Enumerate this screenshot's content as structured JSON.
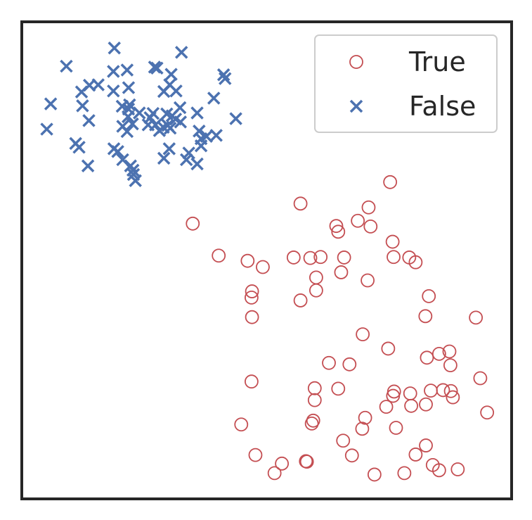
{
  "chart_data": {
    "type": "scatter",
    "title": "",
    "xlabel": "",
    "ylabel": "",
    "xlim": [
      0,
      100
    ],
    "ylim": [
      0,
      100
    ],
    "grid": false,
    "legend_position": "top-right",
    "series": [
      {
        "name": "True",
        "marker": "circle-open",
        "color": "#c44e52",
        "points": [
          [
            75.2,
            66.4
          ],
          [
            56.9,
            61.9
          ],
          [
            70.8,
            61.1
          ],
          [
            34.9,
            57.7
          ],
          [
            68.6,
            58.3
          ],
          [
            71.2,
            57.1
          ],
          [
            64.2,
            57.2
          ],
          [
            64.6,
            56.0
          ],
          [
            75.7,
            53.9
          ],
          [
            40.2,
            51.0
          ],
          [
            46.1,
            49.9
          ],
          [
            55.5,
            50.6
          ],
          [
            58.9,
            50.5
          ],
          [
            61.0,
            50.7
          ],
          [
            65.8,
            50.6
          ],
          [
            75.9,
            50.7
          ],
          [
            79.1,
            50.6
          ],
          [
            80.4,
            49.6
          ],
          [
            65.2,
            47.5
          ],
          [
            70.6,
            45.8
          ],
          [
            60.1,
            46.4
          ],
          [
            49.2,
            48.6
          ],
          [
            47.0,
            43.5
          ],
          [
            60.1,
            43.7
          ],
          [
            83.1,
            42.5
          ],
          [
            46.9,
            42.2
          ],
          [
            56.9,
            41.6
          ],
          [
            82.4,
            38.3
          ],
          [
            47.0,
            38.1
          ],
          [
            92.7,
            38.0
          ],
          [
            69.6,
            34.5
          ],
          [
            74.8,
            31.5
          ],
          [
            82.7,
            29.6
          ],
          [
            85.2,
            30.4
          ],
          [
            87.3,
            30.9
          ],
          [
            87.5,
            28.0
          ],
          [
            62.7,
            28.5
          ],
          [
            66.9,
            28.2
          ],
          [
            46.9,
            24.6
          ],
          [
            59.8,
            23.2
          ],
          [
            64.6,
            23.1
          ],
          [
            79.3,
            22.1
          ],
          [
            76.0,
            22.5
          ],
          [
            83.5,
            22.7
          ],
          [
            86.0,
            22.8
          ],
          [
            87.6,
            22.6
          ],
          [
            88.0,
            21.3
          ],
          [
            93.6,
            25.3
          ],
          [
            59.8,
            20.7
          ],
          [
            75.8,
            21.6
          ],
          [
            79.5,
            19.5
          ],
          [
            82.5,
            19.8
          ],
          [
            74.4,
            19.3
          ],
          [
            95.0,
            18.1
          ],
          [
            70.1,
            17.0
          ],
          [
            59.5,
            16.4
          ],
          [
            59.2,
            15.8
          ],
          [
            44.8,
            15.6
          ],
          [
            76.4,
            14.9
          ],
          [
            69.5,
            14.7
          ],
          [
            65.6,
            12.2
          ],
          [
            82.5,
            11.2
          ],
          [
            80.4,
            9.3
          ],
          [
            67.4,
            9.1
          ],
          [
            47.7,
            9.2
          ],
          [
            53.1,
            7.4
          ],
          [
            58.0,
            7.9
          ],
          [
            58.2,
            7.8
          ],
          [
            83.9,
            7.1
          ],
          [
            85.2,
            6.0
          ],
          [
            89.0,
            6.2
          ],
          [
            51.6,
            5.4
          ],
          [
            78.1,
            5.4
          ],
          [
            72.0,
            5.1
          ]
        ]
      },
      {
        "name": "False",
        "marker": "x",
        "color": "#4c72b0",
        "points": [
          [
            18.9,
            94.5
          ],
          [
            32.6,
            93.6
          ],
          [
            9.1,
            90.7
          ],
          [
            27.1,
            90.5
          ],
          [
            27.6,
            90.3
          ],
          [
            18.7,
            89.6
          ],
          [
            21.5,
            89.9
          ],
          [
            41.2,
            88.9
          ],
          [
            30.5,
            89.0
          ],
          [
            41.5,
            88.1
          ],
          [
            15.6,
            86.8
          ],
          [
            13.8,
            86.7
          ],
          [
            21.8,
            86.2
          ],
          [
            18.7,
            85.5
          ],
          [
            31.5,
            85.5
          ],
          [
            29.0,
            85.4
          ],
          [
            30.2,
            86.8
          ],
          [
            12.2,
            85.3
          ],
          [
            39.2,
            84.0
          ],
          [
            5.9,
            82.8
          ],
          [
            22.0,
            82.6
          ],
          [
            20.5,
            82.3
          ],
          [
            12.4,
            82.4
          ],
          [
            32.3,
            82.0
          ],
          [
            24.0,
            80.9
          ],
          [
            21.7,
            80.1
          ],
          [
            21.8,
            81.7
          ],
          [
            35.8,
            80.9
          ],
          [
            26.2,
            79.9
          ],
          [
            26.8,
            80.8
          ],
          [
            29.6,
            80.7
          ],
          [
            30.7,
            80.3
          ],
          [
            31.4,
            79.6
          ],
          [
            32.4,
            79.0
          ],
          [
            43.7,
            79.7
          ],
          [
            13.7,
            79.3
          ],
          [
            25.8,
            78.4
          ],
          [
            27.3,
            78.4
          ],
          [
            20.6,
            78.1
          ],
          [
            22.6,
            78.6
          ],
          [
            28.9,
            77.9
          ],
          [
            30.3,
            77.7
          ],
          [
            28.1,
            77.2
          ],
          [
            5.1,
            77.5
          ],
          [
            21.5,
            77.0
          ],
          [
            29.8,
            78.3
          ],
          [
            36.2,
            77.1
          ],
          [
            39.7,
            76.2
          ],
          [
            37.7,
            76.0
          ],
          [
            36.6,
            75.5
          ],
          [
            11.0,
            74.5
          ],
          [
            36.6,
            74.0
          ],
          [
            11.7,
            73.7
          ],
          [
            30.1,
            73.4
          ],
          [
            18.8,
            73.4
          ],
          [
            19.6,
            72.8
          ],
          [
            34.1,
            72.5
          ],
          [
            29.0,
            71.4
          ],
          [
            20.6,
            71.1
          ],
          [
            33.6,
            71.1
          ],
          [
            35.8,
            70.2
          ],
          [
            22.2,
            69.8
          ],
          [
            13.5,
            69.8
          ],
          [
            22.7,
            68.9
          ],
          [
            22.8,
            68.0
          ],
          [
            23.2,
            66.7
          ]
        ]
      }
    ]
  }
}
